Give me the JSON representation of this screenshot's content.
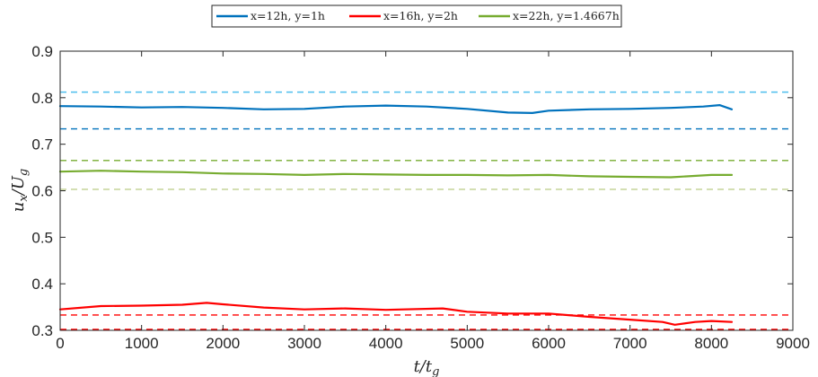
{
  "chart_data": {
    "type": "line",
    "xlabel": "t/t_g",
    "ylabel": "u_x/U_g",
    "xlim": [
      0,
      9000
    ],
    "ylim": [
      0.3,
      0.9
    ],
    "xticks": [
      "0",
      "1000",
      "2000",
      "3000",
      "4000",
      "5000",
      "6000",
      "7000",
      "8000",
      "9000"
    ],
    "yticks": [
      "0.3",
      "0.4",
      "0.5",
      "0.6",
      "0.7",
      "0.8",
      "0.9"
    ],
    "grid": false,
    "legend_position": "top-center",
    "series": [
      {
        "name": "x=12h, y=1h",
        "color": "#0072BD",
        "x": [
          0,
          500,
          1000,
          1500,
          2000,
          2500,
          3000,
          3500,
          4000,
          4500,
          5000,
          5500,
          5800,
          6000,
          6500,
          7000,
          7500,
          7900,
          8100,
          8250
        ],
        "y": [
          0.782,
          0.781,
          0.779,
          0.78,
          0.778,
          0.775,
          0.776,
          0.781,
          0.783,
          0.781,
          0.776,
          0.768,
          0.767,
          0.772,
          0.775,
          0.776,
          0.778,
          0.781,
          0.784,
          0.775
        ]
      },
      {
        "name": "x=16h, y=2h",
        "color": "#FF0000",
        "x": [
          0,
          500,
          1000,
          1500,
          1800,
          2000,
          2500,
          3000,
          3500,
          4000,
          4700,
          5000,
          5500,
          6000,
          6500,
          7000,
          7400,
          7550,
          7800,
          8000,
          8250
        ],
        "y": [
          0.345,
          0.352,
          0.353,
          0.355,
          0.359,
          0.356,
          0.349,
          0.345,
          0.347,
          0.344,
          0.347,
          0.34,
          0.336,
          0.336,
          0.329,
          0.323,
          0.318,
          0.312,
          0.318,
          0.32,
          0.318
        ]
      },
      {
        "name": "x=22h, y=1.4667h",
        "color": "#77AC30",
        "x": [
          0,
          500,
          1000,
          1500,
          2000,
          2500,
          3000,
          3500,
          4000,
          4500,
          5000,
          5500,
          6000,
          6500,
          7000,
          7500,
          8000,
          8250
        ],
        "y": [
          0.641,
          0.643,
          0.641,
          0.64,
          0.637,
          0.636,
          0.634,
          0.636,
          0.635,
          0.634,
          0.634,
          0.633,
          0.634,
          0.631,
          0.63,
          0.629,
          0.634,
          0.634
        ]
      }
    ],
    "reference_lines": [
      {
        "y": 0.812,
        "color": "#4DBEEE"
      },
      {
        "y": 0.733,
        "color": "#0072BD"
      },
      {
        "y": 0.665,
        "color": "#77AC30"
      },
      {
        "y": 0.603,
        "color": "#BFCF8F"
      },
      {
        "y": 0.333,
        "color": "#FF0000"
      },
      {
        "y": 0.302,
        "color": "#FF0000"
      }
    ]
  }
}
